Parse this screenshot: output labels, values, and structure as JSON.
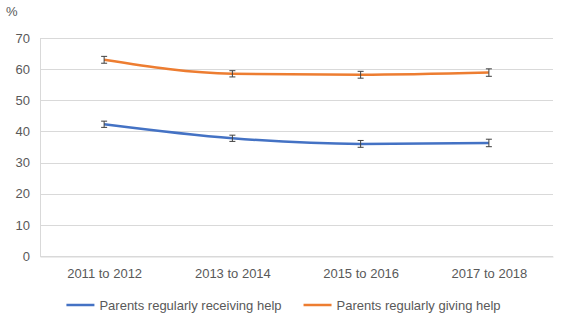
{
  "chart_data": {
    "type": "line",
    "y_label": "%",
    "categories": [
      "2011 to 2012",
      "2013 to 2014",
      "2015 to 2016",
      "2017 to 2018"
    ],
    "series": [
      {
        "name": "Parents regularly receiving help",
        "color": "#4472c4",
        "values": [
          42.3,
          37.8,
          36.0,
          36.3
        ],
        "errors": [
          1.0,
          1.0,
          1.1,
          1.2
        ]
      },
      {
        "name": "Parents regularly giving help",
        "color": "#ed7d31",
        "values": [
          63.0,
          58.5,
          58.2,
          58.9
        ],
        "errors": [
          1.1,
          1.0,
          1.1,
          1.2
        ]
      }
    ],
    "ylim": [
      0,
      70
    ],
    "yticks": [
      0,
      10,
      20,
      30,
      40,
      50,
      60,
      70
    ],
    "grid": true,
    "legend": "bottom"
  }
}
